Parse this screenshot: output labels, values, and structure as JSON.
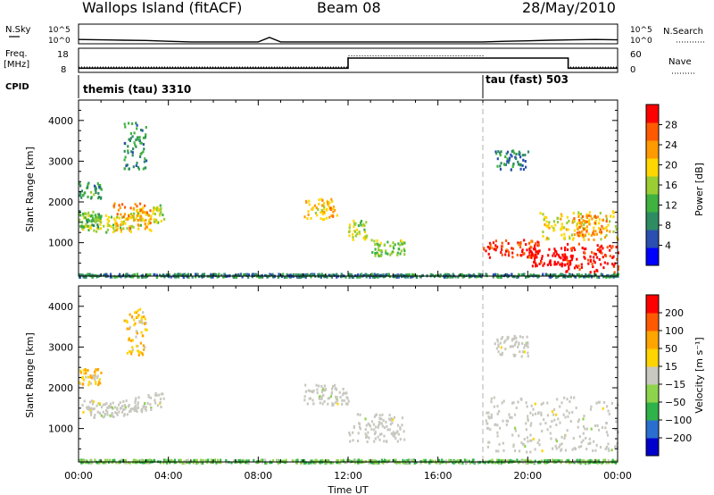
{
  "header": {
    "title": "Wallops Island (fitACF)",
    "beam": "Beam 08",
    "date": "28/May/2010"
  },
  "noise_panel": {
    "left_label": "N.Sky",
    "right_label": "N.Search",
    "tick_top": "10^5",
    "tick_bottom": "10^0"
  },
  "freq_panel": {
    "left_label_1": "Freq.",
    "left_label_2": "[MHz]",
    "right_label": "Nave",
    "left_ticks": [
      "18",
      "8"
    ],
    "right_ticks": [
      "60",
      "0"
    ]
  },
  "cpid_panel": {
    "label": "CPID",
    "mode_1": "themis (tau) 3310",
    "mode_2": "tau (fast) 503",
    "switch_hour": 18.0
  },
  "time_axis": {
    "label": "Time UT",
    "ticks": [
      "00:00",
      "04:00",
      "08:00",
      "12:00",
      "16:00",
      "20:00",
      "00:00"
    ]
  },
  "power_panel": {
    "ylabel": "Slant Range [km]",
    "yticks": [
      "4000",
      "3000",
      "2000",
      "1000"
    ],
    "colorbar_label": "Power [dB]",
    "colorbar_ticks": [
      "28",
      "24",
      "20",
      "16",
      "12",
      "8",
      "4"
    ]
  },
  "velocity_panel": {
    "ylabel": "Slant Range [km]",
    "yticks": [
      "4000",
      "3000",
      "2000",
      "1000"
    ],
    "colorbar_label": "Velocity [m s⁻¹]",
    "colorbar_ticks": [
      "200",
      "100",
      "50",
      "15",
      "-15",
      "-50",
      "-100",
      "-200"
    ]
  },
  "colors": {
    "power_scale": [
      "#0000ff",
      "#2a4fb0",
      "#2e8c63",
      "#3fb23f",
      "#9acd32",
      "#ffd700",
      "#ff9a00",
      "#ff5a00",
      "#ff0000"
    ],
    "velocity_scale": [
      "#0000cc",
      "#2a6fd0",
      "#2fb24a",
      "#8ed34c",
      "#c8c8c0",
      "#ffd400",
      "#ffa500",
      "#ff5a00",
      "#ff0000"
    ],
    "ground_scatter": "#c8c8c0",
    "gridline": "#b0b0b0"
  },
  "chart_data": [
    {
      "type": "line",
      "name": "Noise (N.Sky / N.Search)",
      "x_unit": "hours UT",
      "yscale": "log",
      "ylim": [
        1,
        100000
      ],
      "x": [
        0,
        1,
        2,
        3,
        4,
        5,
        6,
        7,
        8,
        8.5,
        9,
        10,
        12,
        14,
        16,
        18,
        19,
        20,
        21,
        22,
        23,
        24
      ],
      "y": [
        10,
        8,
        6,
        5,
        3,
        2,
        2,
        2,
        2,
        40,
        2,
        2,
        2,
        2,
        2,
        2,
        3,
        4,
        6,
        8,
        10,
        8
      ]
    },
    {
      "type": "line",
      "name": "Frequency / Nave",
      "x_unit": "hours UT",
      "ylim": [
        8,
        18
      ],
      "series": [
        {
          "name": "Freq.",
          "x": [
            0,
            12,
            12,
            21.8,
            21.8,
            24
          ],
          "values": [
            9.5,
            9.5,
            14,
            14,
            9.5,
            9.5
          ]
        },
        {
          "name": "Nave",
          "x": [
            0,
            12,
            12,
            18,
            18,
            21.8,
            21.8,
            24
          ],
          "values": [
            10,
            10,
            15,
            15,
            14,
            14,
            10,
            10
          ]
        }
      ]
    },
    {
      "type": "heatmap",
      "name": "Power",
      "x_unit": "hours UT",
      "xlim": [
        0,
        24
      ],
      "ylim": [
        180,
        4500
      ],
      "value_range": [
        0,
        30
      ],
      "grid": false,
      "regions": [
        {
          "t0": 0.0,
          "t1": 3.8,
          "r0": 1300,
          "r1": 2100,
          "value": 16,
          "form": "arc"
        },
        {
          "t0": 0.0,
          "t1": 1.0,
          "r0": 1400,
          "r1": 1800,
          "value": 12
        },
        {
          "t0": 1.5,
          "t1": 3.2,
          "r0": 1300,
          "r1": 2000,
          "value": 22
        },
        {
          "t0": 2.0,
          "t1": 3.0,
          "r0": 2800,
          "r1": 4000,
          "value": 10
        },
        {
          "t0": 0.0,
          "t1": 1.0,
          "r0": 2100,
          "r1": 2500,
          "value": 10
        },
        {
          "t0": 10.0,
          "t1": 11.5,
          "r0": 1600,
          "r1": 2100,
          "value": 20
        },
        {
          "t0": 12.0,
          "t1": 12.8,
          "r0": 1100,
          "r1": 1600,
          "value": 16
        },
        {
          "t0": 13.0,
          "t1": 14.5,
          "r0": 700,
          "r1": 1100,
          "value": 14
        },
        {
          "t0": 18.0,
          "t1": 20.5,
          "r0": 650,
          "r1": 1100,
          "value": 26
        },
        {
          "t0": 18.5,
          "t1": 20.0,
          "r0": 2800,
          "r1": 3300,
          "value": 8
        },
        {
          "t0": 20.0,
          "t1": 22.0,
          "r0": 450,
          "r1": 900,
          "value": 30
        },
        {
          "t0": 21.5,
          "t1": 24.0,
          "r0": 300,
          "r1": 1000,
          "value": 28
        },
        {
          "t0": 20.5,
          "t1": 24.0,
          "r0": 1100,
          "r1": 1800,
          "value": 18
        },
        {
          "t0": 22.0,
          "t1": 23.5,
          "r0": 1200,
          "r1": 1700,
          "value": 22
        },
        {
          "t0": 0.0,
          "t1": 24.0,
          "r0": 180,
          "r1": 260,
          "value": 8
        }
      ]
    },
    {
      "type": "heatmap",
      "name": "Velocity",
      "x_unit": "hours UT",
      "xlim": [
        0,
        24
      ],
      "ylim": [
        180,
        4500
      ],
      "value_range": [
        -200,
        200
      ],
      "grid": false,
      "regions": [
        {
          "t0": 0.0,
          "t1": 3.8,
          "r0": 1300,
          "r1": 2100,
          "value": 0,
          "form": "arc"
        },
        {
          "t0": 0.0,
          "t1": 1.0,
          "r0": 2100,
          "r1": 2500,
          "value": 60
        },
        {
          "t0": 2.0,
          "t1": 3.0,
          "r0": 2800,
          "r1": 4000,
          "value": 60
        },
        {
          "t0": 10.0,
          "t1": 12.0,
          "r0": 1600,
          "r1": 2100,
          "value": 0
        },
        {
          "t0": 12.0,
          "t1": 14.5,
          "r0": 700,
          "r1": 1400,
          "value": 0
        },
        {
          "t0": 18.0,
          "t1": 24.0,
          "r0": 450,
          "r1": 1800,
          "value": 0
        },
        {
          "t0": 18.5,
          "t1": 20.0,
          "r0": 2800,
          "r1": 3300,
          "value": 0
        },
        {
          "t0": 0.0,
          "t1": 24.0,
          "r0": 180,
          "r1": 260,
          "value": -60
        }
      ]
    }
  ]
}
